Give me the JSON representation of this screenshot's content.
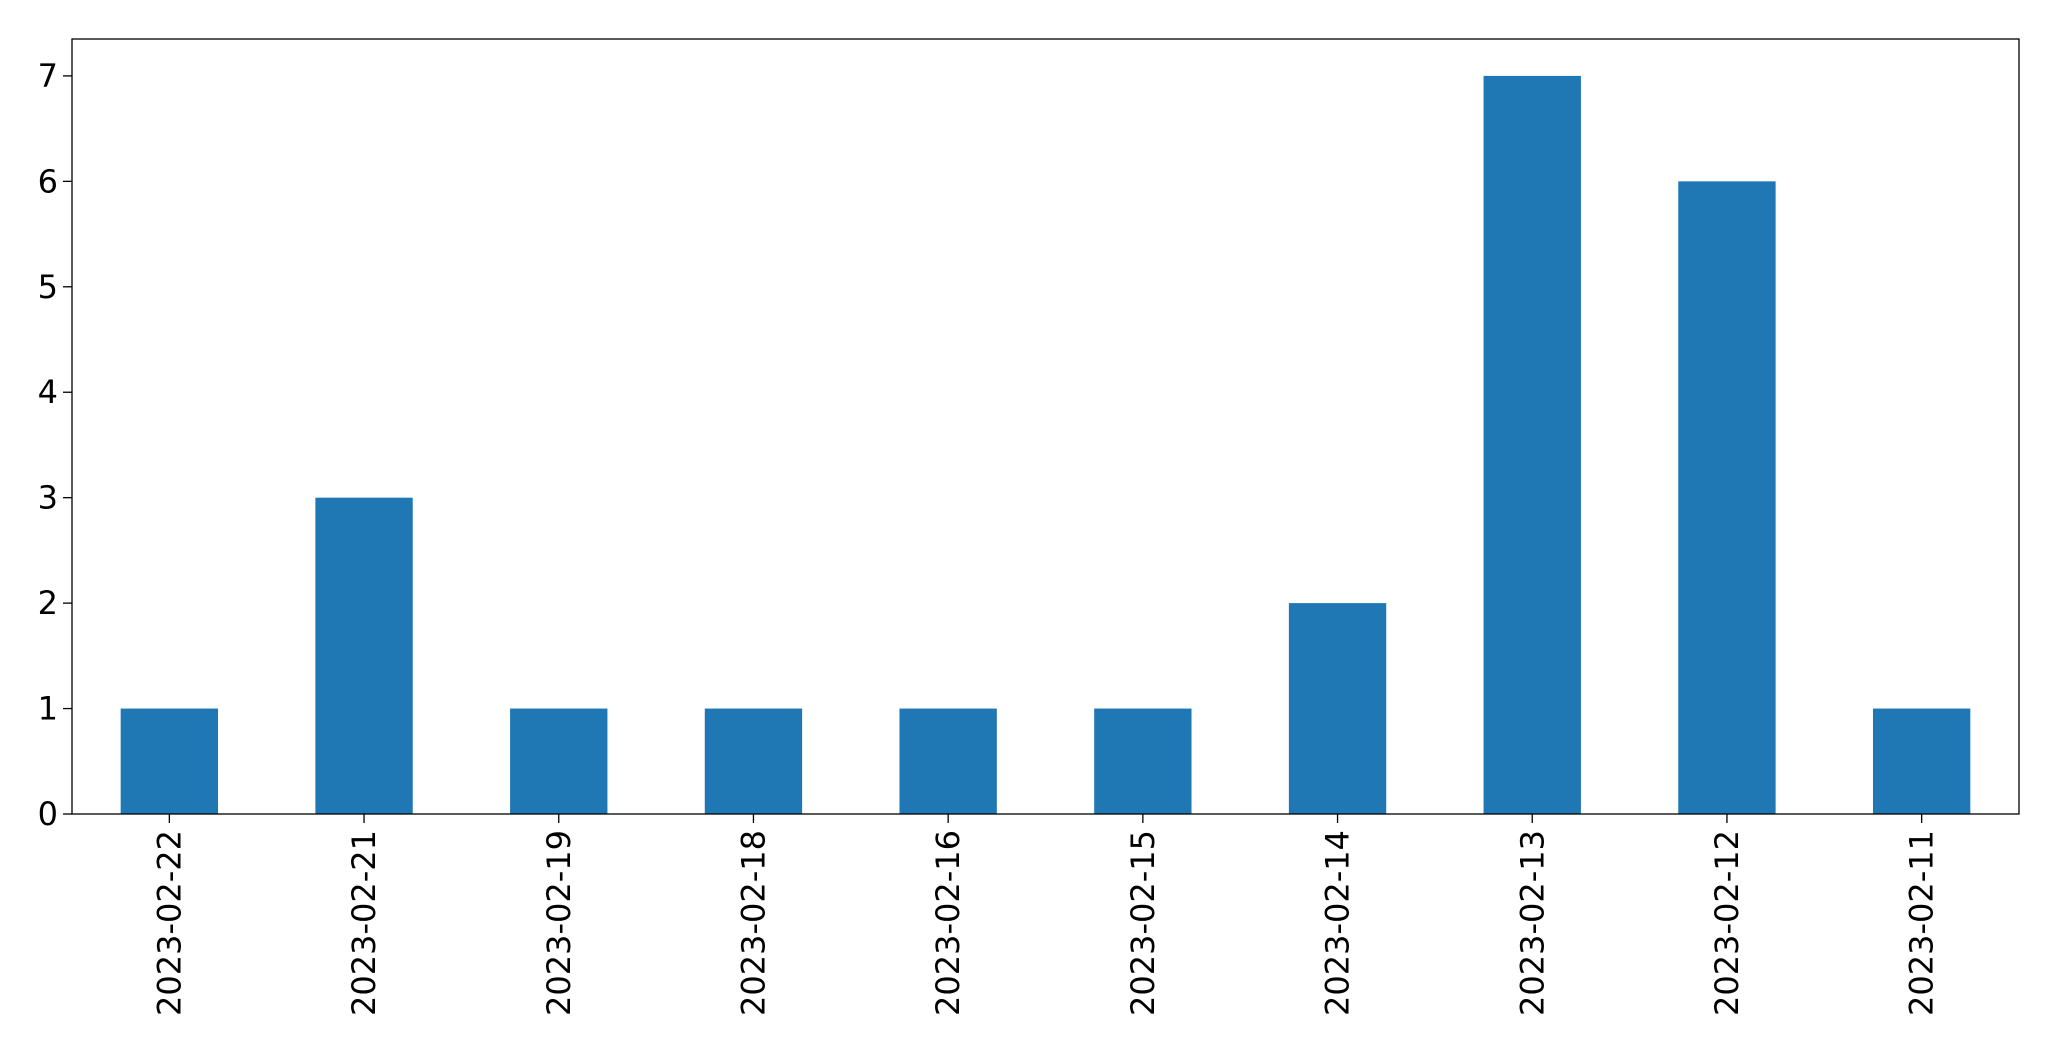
{
  "chart_data": {
    "type": "bar",
    "categories": [
      "2023-02-22",
      "2023-02-21",
      "2023-02-19",
      "2023-02-18",
      "2023-02-16",
      "2023-02-15",
      "2023-02-14",
      "2023-02-13",
      "2023-02-12",
      "2023-02-11"
    ],
    "values": [
      1,
      3,
      1,
      1,
      1,
      1,
      2,
      7,
      6,
      1
    ],
    "color": "#1f77b4",
    "ylim": [
      0,
      7.35
    ],
    "yticks": [
      0,
      1,
      2,
      3,
      4,
      5,
      6,
      7
    ],
    "grid": false
  }
}
